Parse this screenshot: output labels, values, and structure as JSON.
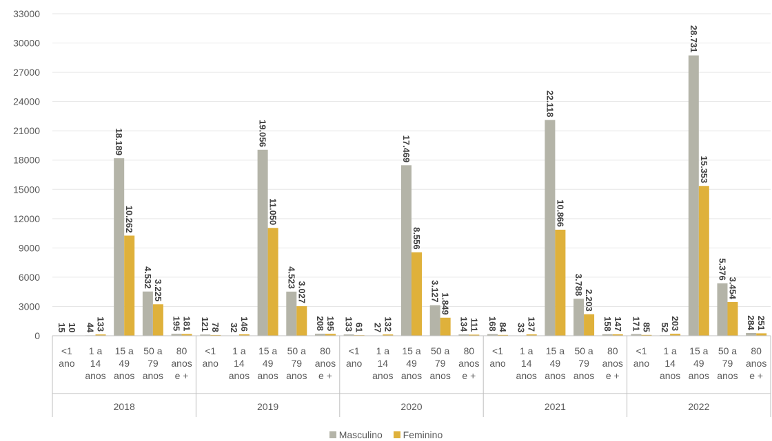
{
  "chart_data": {
    "type": "bar",
    "ylim": [
      0,
      33000
    ],
    "yticks": [
      "0",
      "3000",
      "6000",
      "9000",
      "12000",
      "15000",
      "18000",
      "21000",
      "24000",
      "27000",
      "30000",
      "33000"
    ],
    "grid": true,
    "legend_position": "bottom",
    "groups": [
      "2018",
      "2019",
      "2020",
      "2021",
      "2022"
    ],
    "categories": [
      [
        "<1",
        "ano"
      ],
      [
        "1 a",
        "14",
        "anos"
      ],
      [
        "15 a",
        "49",
        "anos"
      ],
      [
        "50 a",
        "79",
        "anos"
      ],
      [
        "80",
        "anos",
        "e +"
      ]
    ],
    "series": [
      {
        "name": "Masculino",
        "color": "#b4b4a8",
        "values": [
          [
            15,
            44,
            18189,
            4532,
            195
          ],
          [
            121,
            32,
            19056,
            4523,
            208
          ],
          [
            133,
            27,
            17469,
            3127,
            134
          ],
          [
            168,
            33,
            22118,
            3788,
            158
          ],
          [
            171,
            52,
            28731,
            5376,
            284
          ]
        ],
        "labels": [
          [
            "15",
            "44",
            "18.189",
            "4.532",
            "195"
          ],
          [
            "121",
            "32",
            "19.056",
            "4.523",
            "208"
          ],
          [
            "133",
            "27",
            "17.469",
            "3.127",
            "134"
          ],
          [
            "168",
            "33",
            "22.118",
            "3.788",
            "158"
          ],
          [
            "171",
            "52",
            "28.731",
            "5.376",
            "284"
          ]
        ]
      },
      {
        "name": "Feminino",
        "color": "#dfb13b",
        "values": [
          [
            10,
            133,
            10262,
            3225,
            181
          ],
          [
            78,
            146,
            11050,
            3027,
            195
          ],
          [
            61,
            132,
            8556,
            1849,
            111
          ],
          [
            84,
            137,
            10866,
            2203,
            147
          ],
          [
            85,
            203,
            15353,
            3454,
            251
          ]
        ],
        "labels": [
          [
            "10",
            "133",
            "10.262",
            "3.225",
            "181"
          ],
          [
            "78",
            "146",
            "11.050",
            "3.027",
            "195"
          ],
          [
            "61",
            "132",
            "8.556",
            "1.849",
            "111"
          ],
          [
            "84",
            "137",
            "10.866",
            "2.203",
            "147"
          ],
          [
            "85",
            "203",
            "15.353",
            "3.454",
            "251"
          ]
        ]
      }
    ]
  }
}
